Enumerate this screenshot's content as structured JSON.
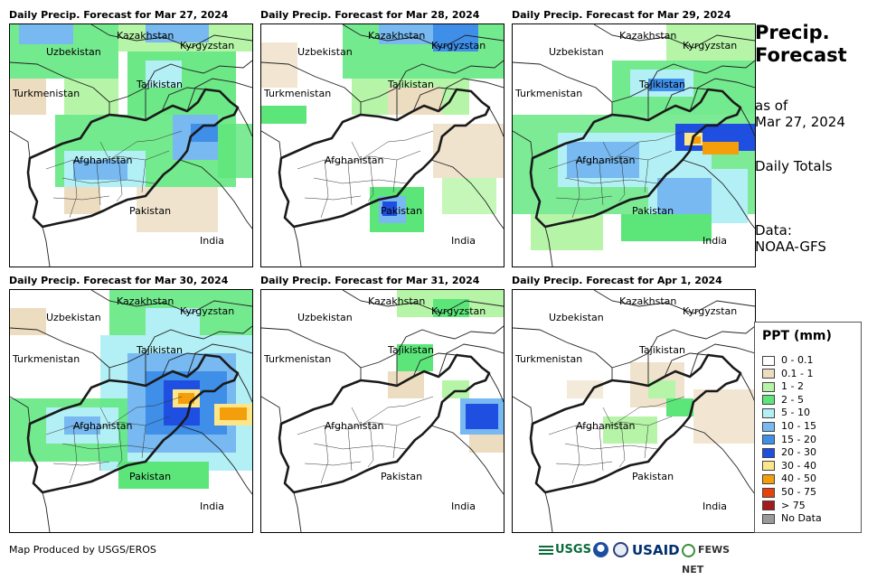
{
  "panels": [
    {
      "title": "Daily Precip. Forecast for Mar 27, 2024"
    },
    {
      "title": "Daily Precip. Forecast for Mar 28, 2024"
    },
    {
      "title": "Daily Precip. Forecast for Mar 29, 2024"
    },
    {
      "title": "Daily Precip. Forecast for Mar 30, 2024"
    },
    {
      "title": "Daily Precip. Forecast for Mar 31, 2024"
    },
    {
      "title": "Daily Precip. Forecast for Apr 1, 2024"
    }
  ],
  "map_labels": {
    "uzbekistan": "Uzbekistan",
    "kazakhstan": "Kazakhstan",
    "kyrgyzstan": "Kyrgyzstan",
    "tajikistan": "Tajikistan",
    "turkmenistan": "Turkmenistan",
    "afghanistan": "Afghanistan",
    "pakistan": "Pakistan",
    "india": "India"
  },
  "sidebar": {
    "title_line1": "Precip.",
    "title_line2": "Forecast",
    "as_of_line1": "as of",
    "as_of_line2": "Mar 27, 2024",
    "totals": "Daily Totals",
    "data_line1": "Data:",
    "data_line2": "NOAA-GFS"
  },
  "legend": {
    "title": "PPT (mm)",
    "items": [
      {
        "label": "0 - 0.1",
        "color": "#ffffff"
      },
      {
        "label": "0.1 - 1",
        "color": "#ecdcc0"
      },
      {
        "label": "1 - 2",
        "color": "#b6f5a8"
      },
      {
        "label": "2 - 5",
        "color": "#5ce67a"
      },
      {
        "label": "5 - 10",
        "color": "#b3f0f5"
      },
      {
        "label": "10 - 15",
        "color": "#77b9f0"
      },
      {
        "label": "15 - 20",
        "color": "#3f8ee8"
      },
      {
        "label": "20 - 30",
        "color": "#1f4fe0"
      },
      {
        "label": "30 - 40",
        "color": "#fde68a"
      },
      {
        "label": "40 - 50",
        "color": "#f59e0b"
      },
      {
        "label": "50 - 75",
        "color": "#e8420c"
      },
      {
        "label": "> 75",
        "color": "#a51b1b"
      },
      {
        "label": "No Data",
        "color": "#999999"
      }
    ]
  },
  "footer": {
    "credit": "Map Produced by USGS/EROS",
    "logo_usgs": "USGS",
    "logo_usaid": "USAID",
    "logo_fews": "FEWS NET"
  }
}
